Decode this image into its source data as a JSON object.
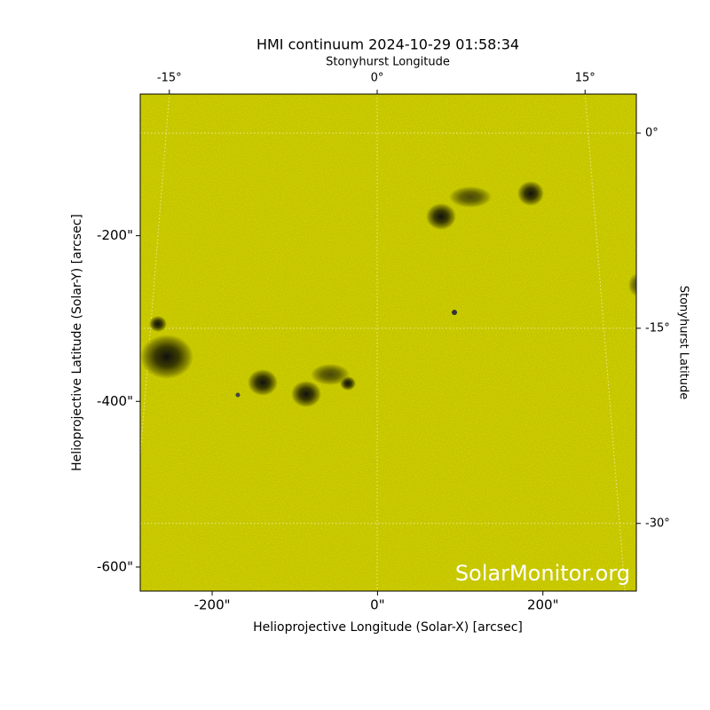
{
  "chart_data": {
    "type": "image",
    "title": "HMI continuum 2024-10-29 01:58:34",
    "xlabel": "Helioprojective Longitude (Solar-X) [arcsec]",
    "ylabel": "Helioprojective Latitude (Solar-Y) [arcsec]",
    "x2label": "Stonyhurst Longitude",
    "y2label": "Stonyhurst Latitude",
    "watermark": "SolarMonitor.org",
    "color": "#cccc00",
    "xlim": [
      -287,
      313
    ],
    "xticks": [
      {
        "value": -200,
        "label": "-200\""
      },
      {
        "value": 0,
        "label": "0\""
      },
      {
        "value": 200,
        "label": "200\""
      }
    ],
    "ylim": [
      -629,
      -29
    ],
    "yticks": [
      {
        "value": -200,
        "label": "-200\""
      },
      {
        "value": -400,
        "label": "-400\""
      },
      {
        "value": -600,
        "label": "-600\""
      }
    ],
    "x2lim": [
      -17.1,
      18.7
    ],
    "x2ticks": [
      {
        "value": -15,
        "label": "-15°"
      },
      {
        "value": 0,
        "label": "0°"
      },
      {
        "value": 15,
        "label": "15°"
      }
    ],
    "y2lim": [
      3.0,
      -35.2
    ],
    "y2ticks": [
      {
        "value": 0,
        "label": "0°"
      },
      {
        "value": -15,
        "label": "-15°"
      },
      {
        "value": -30,
        "label": "-30°"
      }
    ],
    "grid": true
  }
}
